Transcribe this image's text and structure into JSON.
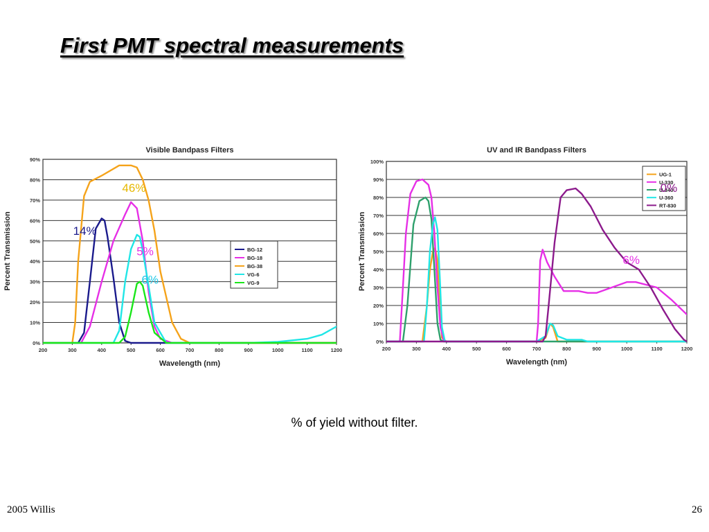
{
  "slide": {
    "title": "First PMT spectral measurements",
    "caption": "% of yield without filter.",
    "footer_left": "2005 Willis",
    "page_number": "26"
  },
  "chart_data": [
    {
      "type": "line",
      "title": "Visible Bandpass Filters",
      "xlabel": "Wavelength (nm)",
      "ylabel": "Percent Transmission",
      "xlim": [
        200,
        1200
      ],
      "ylim": [
        0,
        90
      ],
      "xticks": [
        200,
        300,
        400,
        500,
        600,
        700,
        800,
        900,
        1000,
        1100,
        1200
      ],
      "yticks": [
        0,
        10,
        20,
        30,
        40,
        50,
        60,
        70,
        80,
        90
      ],
      "ytick_labels": [
        "0%",
        "10%",
        "20%",
        "30%",
        "40%",
        "50%",
        "60%",
        "70%",
        "80%",
        "90%"
      ],
      "grid": "horizontal",
      "legend_position": "right",
      "series": [
        {
          "name": "BG-12",
          "color": "#1a1a8c",
          "x": [
            200,
            320,
            340,
            360,
            380,
            400,
            410,
            420,
            440,
            460,
            480,
            500,
            520,
            1200
          ],
          "y": [
            0,
            0,
            5,
            30,
            56,
            61,
            60,
            52,
            32,
            10,
            1,
            0,
            0,
            0
          ]
        },
        {
          "name": "BG-18",
          "color": "#e62fe6",
          "x": [
            200,
            330,
            360,
            400,
            440,
            480,
            500,
            520,
            540,
            560,
            580,
            600,
            640,
            700,
            1200
          ],
          "y": [
            0,
            0,
            8,
            30,
            50,
            63,
            69,
            66,
            50,
            25,
            8,
            2,
            0,
            0,
            0
          ]
        },
        {
          "name": "BG-38",
          "color": "#f5a31a",
          "x": [
            200,
            300,
            310,
            320,
            340,
            360,
            400,
            460,
            500,
            520,
            540,
            560,
            580,
            600,
            640,
            670,
            700,
            1200
          ],
          "y": [
            0,
            0,
            10,
            40,
            72,
            79,
            82,
            87,
            87,
            86,
            80,
            70,
            55,
            35,
            10,
            2,
            0,
            0
          ]
        },
        {
          "name": "VG-6",
          "color": "#20e6e6",
          "x": [
            200,
            440,
            460,
            480,
            500,
            520,
            530,
            540,
            560,
            580,
            620,
            700,
            900,
            1000,
            1100,
            1150,
            1200
          ],
          "y": [
            0,
            0,
            6,
            30,
            46,
            53,
            52,
            45,
            28,
            10,
            0,
            0,
            0,
            0.5,
            2,
            4,
            8
          ]
        },
        {
          "name": "VG-9",
          "color": "#1ae61a",
          "x": [
            200,
            460,
            480,
            500,
            520,
            530,
            540,
            560,
            580,
            620,
            700,
            1100,
            1200
          ],
          "y": [
            0,
            0,
            3,
            15,
            29,
            30,
            28,
            15,
            5,
            0,
            0,
            0,
            0
          ]
        }
      ],
      "annotations": [
        {
          "text": "46%",
          "color": "#e6b800",
          "x": 510,
          "y": 74
        },
        {
          "text": "14%",
          "color": "#1a1a8c",
          "x": 343,
          "y": 53
        },
        {
          "text": "5%",
          "color": "#e62fe6",
          "x": 548,
          "y": 43
        },
        {
          "text": "6%",
          "color": "#20c8e6",
          "x": 565,
          "y": 29
        }
      ]
    },
    {
      "type": "line",
      "title": "UV and IR Bandpass Filters",
      "xlabel": "Wavelength (nm)",
      "ylabel": "Percent Transmission",
      "xlim": [
        200,
        1200
      ],
      "ylim": [
        0,
        100
      ],
      "xticks": [
        200,
        300,
        400,
        500,
        600,
        700,
        800,
        900,
        1000,
        1100,
        1200
      ],
      "yticks": [
        0,
        10,
        20,
        30,
        40,
        50,
        60,
        70,
        80,
        90,
        100
      ],
      "ytick_labels": [
        "0%",
        "10%",
        "20%",
        "30%",
        "40%",
        "50%",
        "60%",
        "70%",
        "80%",
        "90%",
        "100%"
      ],
      "grid": "horizontal",
      "legend_position": "top-right",
      "series": [
        {
          "name": "UG-1",
          "color": "#f5a31a",
          "x": [
            200,
            320,
            335,
            345,
            355,
            362,
            370,
            378,
            385,
            400,
            700,
            730,
            745,
            755,
            770,
            1200
          ],
          "y": [
            0,
            0,
            20,
            40,
            50,
            52,
            45,
            20,
            2,
            0,
            0,
            2,
            10,
            8,
            0,
            0
          ]
        },
        {
          "name": "U-330",
          "color": "#e62fe6",
          "x": [
            200,
            245,
            255,
            265,
            280,
            300,
            320,
            340,
            350,
            360,
            370,
            380,
            390,
            400,
            700,
            705,
            712,
            720,
            735,
            760,
            790,
            840,
            870,
            900,
            950,
            1000,
            1030,
            1100,
            1150,
            1200
          ],
          "y": [
            0,
            0,
            30,
            60,
            82,
            89,
            90,
            87,
            80,
            60,
            30,
            8,
            1,
            0,
            0,
            10,
            45,
            51,
            44,
            36,
            28,
            28,
            27,
            27,
            30,
            33,
            33,
            30,
            23,
            15
          ]
        },
        {
          "name": "U-340",
          "color": "#2ea06c",
          "x": [
            200,
            255,
            270,
            290,
            310,
            330,
            340,
            350,
            360,
            370,
            380,
            390,
            1200
          ],
          "y": [
            0,
            0,
            20,
            65,
            78,
            80,
            78,
            68,
            40,
            10,
            1,
            0,
            0
          ]
        },
        {
          "name": "U-360",
          "color": "#20e6e6",
          "x": [
            200,
            325,
            335,
            345,
            355,
            362,
            370,
            378,
            385,
            395,
            400,
            700,
            730,
            745,
            755,
            770,
            800,
            850,
            870,
            1200
          ],
          "y": [
            0,
            0,
            20,
            50,
            65,
            69,
            62,
            35,
            8,
            0,
            0,
            0,
            3,
            10,
            9,
            3,
            1,
            1,
            0,
            0
          ]
        },
        {
          "name": "RT-830",
          "color": "#8c1a8c",
          "x": [
            200,
            720,
            730,
            740,
            760,
            780,
            800,
            830,
            850,
            880,
            920,
            960,
            1000,
            1040,
            1080,
            1120,
            1160,
            1190,
            1200
          ],
          "y": [
            0,
            0,
            3,
            20,
            55,
            80,
            84,
            85,
            82,
            75,
            62,
            52,
            44,
            40,
            30,
            18,
            7,
            1,
            0
          ]
        }
      ],
      "annotations": [
        {
          "text": "0%",
          "color": "#8c1a8c",
          "x": 1140,
          "y": 83
        },
        {
          "text": "6%",
          "color": "#e62fe6",
          "x": 1015,
          "y": 43
        }
      ]
    }
  ]
}
